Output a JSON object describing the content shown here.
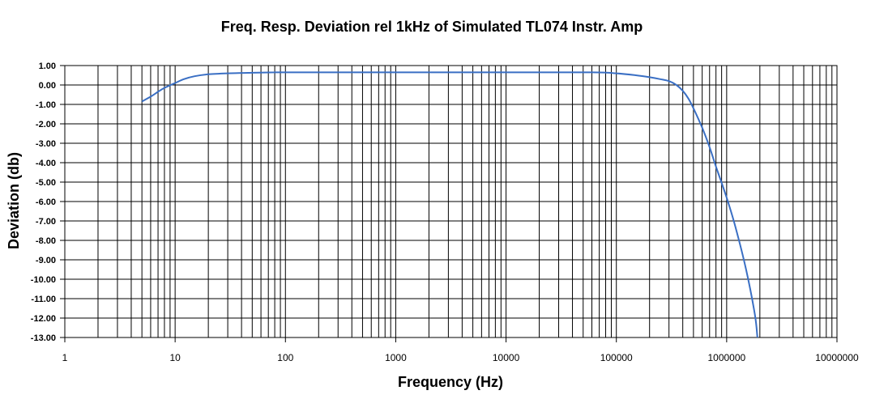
{
  "chart_data": {
    "type": "line",
    "title": "Freq. Resp. Deviation rel 1kHz of Simulated TL074 Instr. Amp",
    "xlabel": "Frequency (Hz)",
    "ylabel": "Deviation (db)",
    "x_scale": "log",
    "xlim": [
      1,
      10000000
    ],
    "ylim": [
      -13,
      1
    ],
    "grid": true,
    "legend": "none",
    "line_color": "#3a6fc4",
    "x_ticks": [
      {
        "value": 1,
        "label": "1"
      },
      {
        "value": 10,
        "label": "10"
      },
      {
        "value": 100,
        "label": "100"
      },
      {
        "value": 1000,
        "label": "1000"
      },
      {
        "value": 10000,
        "label": "10000"
      },
      {
        "value": 100000,
        "label": "100000"
      },
      {
        "value": 1000000,
        "label": "1000000"
      },
      {
        "value": 10000000,
        "label": "10000000"
      }
    ],
    "y_ticks": [
      {
        "value": 1,
        "label": "1.00"
      },
      {
        "value": 0,
        "label": "0.00"
      },
      {
        "value": -1,
        "label": "-1.00"
      },
      {
        "value": -2,
        "label": "-2.00"
      },
      {
        "value": -3,
        "label": "-3.00"
      },
      {
        "value": -4,
        "label": "-4.00"
      },
      {
        "value": -5,
        "label": "-5.00"
      },
      {
        "value": -6,
        "label": "-6.00"
      },
      {
        "value": -7,
        "label": "-7.00"
      },
      {
        "value": -8,
        "label": "-8.00"
      },
      {
        "value": -9,
        "label": "-9.00"
      },
      {
        "value": -10,
        "label": "-10.00"
      },
      {
        "value": -11,
        "label": "-11.00"
      },
      {
        "value": -12,
        "label": "-12.00"
      },
      {
        "value": -13,
        "label": "-13.00"
      }
    ],
    "series": [
      {
        "x": [
          5,
          6,
          7,
          8,
          10,
          12,
          15,
          20,
          30,
          50,
          80,
          100,
          1000,
          10000,
          60000,
          100000,
          150000,
          200000,
          250000,
          300000,
          350000,
          400000,
          450000,
          500000,
          600000,
          700000,
          800000,
          1000000,
          1200000,
          1500000,
          1800000,
          1900000
        ],
        "y": [
          -0.85,
          -0.6,
          -0.35,
          -0.15,
          0.1,
          0.3,
          0.45,
          0.55,
          0.6,
          0.63,
          0.65,
          0.65,
          0.65,
          0.65,
          0.65,
          0.6,
          0.5,
          0.4,
          0.3,
          0.2,
          0.0,
          -0.3,
          -0.7,
          -1.2,
          -2.2,
          -3.2,
          -4.2,
          -5.8,
          -7.3,
          -9.5,
          -11.8,
          -13.0
        ]
      }
    ]
  }
}
